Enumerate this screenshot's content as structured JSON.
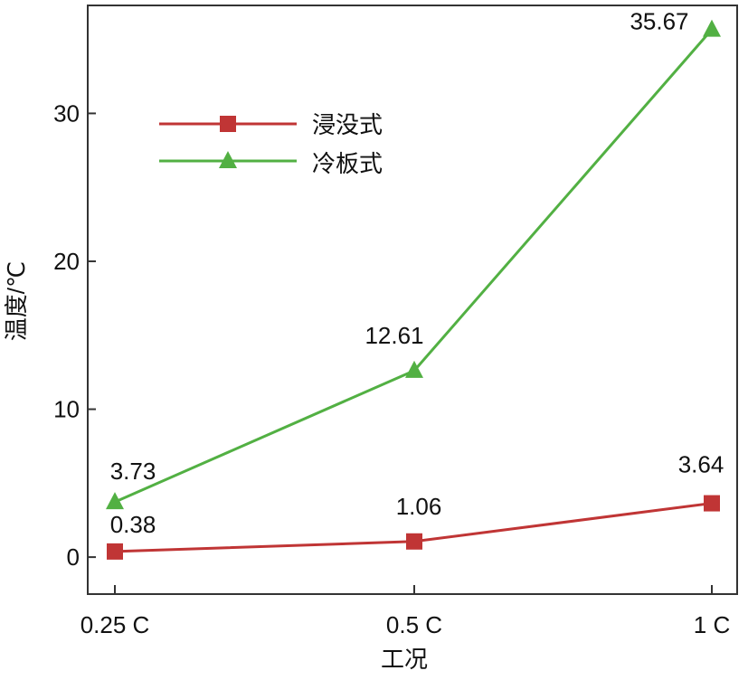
{
  "chart_data": {
    "type": "line",
    "categories": [
      "0.25 C",
      "0.5 C",
      "1 C"
    ],
    "xlabel": "工况",
    "ylabel": "温度/℃",
    "ylim": [
      -2.5,
      37.3
    ],
    "yticks": [
      0,
      10,
      20,
      30
    ],
    "grid": false,
    "legend_position": "top-left",
    "series": [
      {
        "name": "浸没式",
        "values": [
          0.38,
          1.06,
          3.64
        ],
        "labels": [
          "0.38",
          "1.06",
          "3.64"
        ],
        "color": "#c03535",
        "marker": "square"
      },
      {
        "name": "冷板式",
        "values": [
          3.73,
          12.61,
          35.67
        ],
        "labels": [
          "3.73",
          "12.61",
          "35.67"
        ],
        "color": "#52b043",
        "marker": "triangle"
      }
    ]
  }
}
